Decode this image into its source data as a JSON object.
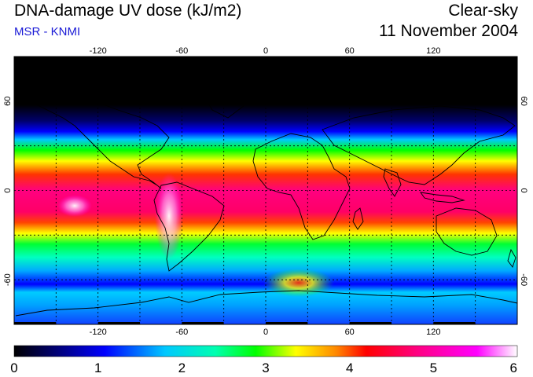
{
  "header": {
    "title": "DNA-damage UV dose (kJ/m2)",
    "source": "MSR - KNMI",
    "condition": "Clear-sky",
    "date": "11 November 2004"
  },
  "colors": {
    "source_text": "#1a1ad6",
    "grid_line": "#000000",
    "coastline": "#000000"
  },
  "map": {
    "projection": "equirectangular",
    "lon_range": [
      -180,
      180
    ],
    "lat_range": [
      -90,
      90
    ],
    "lon_tick_labels": [
      "-120",
      "-60",
      "0",
      "60",
      "120"
    ],
    "lat_tick_labels": [
      "60",
      "0",
      "-60"
    ],
    "gridlines": "dashed every 30 degrees"
  },
  "colorbar": {
    "range": [
      0,
      6
    ],
    "tick_labels": [
      "0",
      "1",
      "2",
      "3",
      "4",
      "5",
      "6"
    ],
    "gradient": [
      "#000000",
      "#00008b",
      "#0000ff",
      "#00c8ff",
      "#00ffb0",
      "#00ff00",
      "#ffff00",
      "#ff8800",
      "#ff0000",
      "#ff0080",
      "#ff00ff",
      "#ffffff"
    ]
  }
}
